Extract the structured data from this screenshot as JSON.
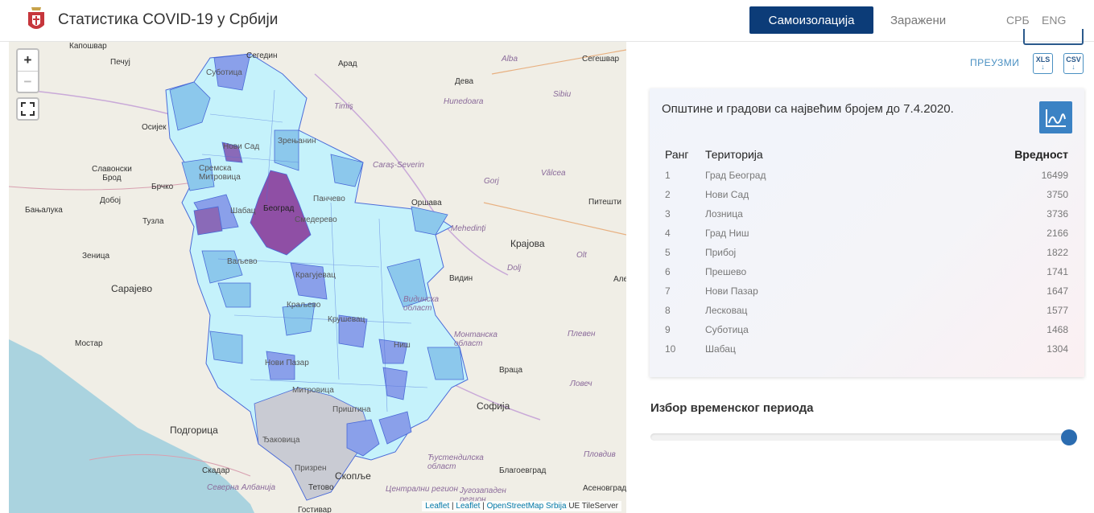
{
  "app": {
    "title": "Статистика COVID-19 у Србији"
  },
  "nav": {
    "active": "Самоизолација",
    "infected": "Заражени",
    "lang_sr": "СРБ",
    "lang_en": "ENG"
  },
  "map": {
    "zoom_in": "+",
    "zoom_out": "−",
    "attribution": {
      "leaflet1": "Leaflet",
      "leaflet2": "Leaflet",
      "osm": "OpenStreetMap Srbija",
      "tileserver": "UE TileServer"
    },
    "labels": {
      "kaposvar": "Капошвар",
      "pecuj": "Печуј",
      "osijek": "Осијек",
      "slavonski_brod": "Славонски\nБрод",
      "brcko": "Брчко",
      "doboj": "Добој",
      "banjaluka": "Бањалука",
      "tuzla": "Тузла",
      "zenica": "Зеница",
      "sarajevo": "Сарајево",
      "mostar": "Мостар",
      "podgorica": "Подгорица",
      "skadar": "Скадар",
      "severna_albanija": "Северна Албанија",
      "tetovo": "Тетово",
      "skopje": "Скопље",
      "kostivar": "Гостивар",
      "central_region": "Централни регион",
      "segedin": "Сегедин",
      "arad": "Арад",
      "alba": "Alba",
      "segesvar": "Сегешвар",
      "deva": "Дева",
      "hunedoara": "Hunedoara",
      "timis": "Timiș",
      "sibiu": "Sibiu",
      "caras": "Caraș-Severin",
      "gorj": "Gorj",
      "valcea": "Vâlcea",
      "pitesti": "Питешти",
      "orsava": "Оршава",
      "mehedinti": "Mehedinți",
      "krajova": "Крајова",
      "dolj": "Dolj",
      "olt": "Olt",
      "vidin": "Видин",
      "vidinska": "Видинска\nобласт",
      "montanska": "Монтанска\nобласт",
      "pleven": "Плевен",
      "vraca": "Враца",
      "sofija": "Софија",
      "lovec": "Ловеч",
      "kustendilska": "Ћустендилска\nобласт",
      "plovdiv": "Пловдив",
      "blagoevgrad": "Благоевград",
      "jugozapaden": "Југозападен\nрегион",
      "asenovgrad": "Асеновград",
      "alex": "Але",
      "subotica": "Суботица",
      "novi_sad": "Нови Сад",
      "beograd": "Београд",
      "smederevo": "Смедерево",
      "pancevo": "Панчево",
      "zrenjanin": "Зрењанин",
      "sremska": "Сремска\nМитровица",
      "sabac": "Шабац",
      "valjevo": "Ваљево",
      "kragujevac": "Крагујевац",
      "kraljevo": "Краљево",
      "krusevac": "Крушевац",
      "nis": "Ниш",
      "novi_pazar": "Нови Пазар",
      "mitrovica": "Митровица",
      "pristina": "Приштина",
      "prizren": "Призрен",
      "djakovica": "Ђаковица"
    }
  },
  "download": {
    "label": "ПРЕУЗМИ",
    "xls": "XLS",
    "csv": "CSV",
    "arrow": "↓"
  },
  "card": {
    "title": "Општине и градови са највећим бројем до 7.4.2020.",
    "headers": {
      "rank": "Ранг",
      "territory": "Територија",
      "value": "Вредност"
    },
    "rows": [
      {
        "rank": "1",
        "territory": "Град Београд",
        "value": "16499"
      },
      {
        "rank": "2",
        "territory": "Нови Сад",
        "value": "3750"
      },
      {
        "rank": "3",
        "territory": "Лозница",
        "value": "3736"
      },
      {
        "rank": "4",
        "territory": "Град Ниш",
        "value": "2166"
      },
      {
        "rank": "5",
        "territory": "Прибој",
        "value": "1822"
      },
      {
        "rank": "6",
        "territory": "Прешево",
        "value": "1741"
      },
      {
        "rank": "7",
        "territory": "Нови Пазар",
        "value": "1647"
      },
      {
        "rank": "8",
        "territory": "Лесковац",
        "value": "1577"
      },
      {
        "rank": "9",
        "territory": "Суботица",
        "value": "1468"
      },
      {
        "rank": "10",
        "territory": "Шабац",
        "value": "1304"
      }
    ]
  },
  "period": {
    "label": "Избор временског периода",
    "slider_position": 1.0
  },
  "colors": {
    "primary": "#0c3c78",
    "accent": "#3b82c4",
    "low": "#c5f2fb",
    "mid": "#8cc8ec",
    "high": "#6f7fe0",
    "top": "#8a4ca8",
    "nodata": "#c9cbd3"
  }
}
